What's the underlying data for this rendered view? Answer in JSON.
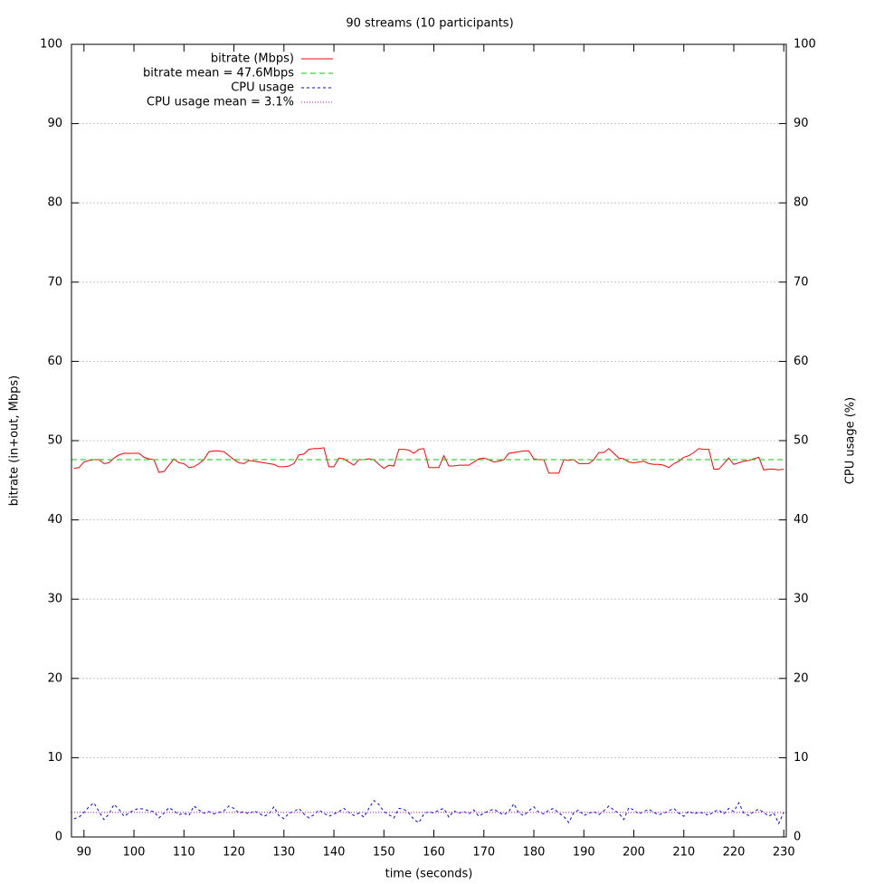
{
  "chart_data": {
    "type": "line",
    "title": "90 streams (10 participants)",
    "xlabel": "time (seconds)",
    "ylabel": "bitrate (in+out, Mbps)",
    "y2label": "CPU usage (%)",
    "xlim": [
      87.5,
      230.5
    ],
    "xticks": [
      90,
      100,
      110,
      120,
      130,
      140,
      150,
      160,
      170,
      180,
      190,
      200,
      210,
      220,
      230
    ],
    "ylim": [
      0,
      100
    ],
    "yticks": [
      0,
      10,
      20,
      30,
      40,
      50,
      60,
      70,
      80,
      90,
      100
    ],
    "y2lim": [
      0,
      100
    ],
    "y2ticks": [
      0,
      10,
      20,
      30,
      40,
      50,
      60,
      70,
      80,
      90,
      100
    ],
    "grid": true,
    "legend": "top-left",
    "x": [
      88,
      89,
      90,
      91,
      92,
      93,
      94,
      95,
      96,
      97,
      98,
      99,
      100,
      101,
      102,
      103,
      104,
      105,
      106,
      107,
      108,
      109,
      110,
      111,
      112,
      113,
      114,
      115,
      116,
      117,
      118,
      119,
      120,
      121,
      122,
      123,
      124,
      125,
      126,
      127,
      128,
      129,
      130,
      131,
      132,
      133,
      134,
      135,
      136,
      137,
      138,
      139,
      140,
      141,
      142,
      143,
      144,
      145,
      146,
      147,
      148,
      149,
      150,
      151,
      152,
      153,
      154,
      155,
      156,
      157,
      158,
      159,
      160,
      161,
      162,
      163,
      164,
      165,
      166,
      167,
      168,
      169,
      170,
      171,
      172,
      173,
      174,
      175,
      176,
      177,
      178,
      179,
      180,
      181,
      182,
      183,
      184,
      185,
      186,
      187,
      188,
      189,
      190,
      191,
      192,
      193,
      194,
      195,
      196,
      197,
      198,
      199,
      200,
      201,
      202,
      203,
      204,
      205,
      206,
      207,
      208,
      209,
      210,
      211,
      212,
      213,
      214,
      215,
      216,
      217,
      218,
      219,
      220,
      221,
      222,
      223,
      224,
      225,
      226,
      227,
      228,
      229,
      230
    ],
    "series": [
      {
        "name": "bitrate (Mbps)",
        "color": "#ff0000",
        "dash": "none",
        "axis": "y",
        "values": [
          46.5,
          46.6,
          47.3,
          47.5,
          47.6,
          47.6,
          47.1,
          47.2,
          47.8,
          48.2,
          48.4,
          48.4,
          48.4,
          48.4,
          47.9,
          47.7,
          47.6,
          46.0,
          46.1,
          46.9,
          47.7,
          47.2,
          47.1,
          46.6,
          46.7,
          47.1,
          47.6,
          48.6,
          48.7,
          48.7,
          48.6,
          48.1,
          47.6,
          47.2,
          47.1,
          47.5,
          47.4,
          47.3,
          47.2,
          47.1,
          47.0,
          46.7,
          46.7,
          46.8,
          47.1,
          48.2,
          48.3,
          48.9,
          49.0,
          49.0,
          49.1,
          46.7,
          46.7,
          47.8,
          47.7,
          47.3,
          46.9,
          47.6,
          47.6,
          47.7,
          47.6,
          47.0,
          46.5,
          46.9,
          46.8,
          48.9,
          48.9,
          48.8,
          48.4,
          48.9,
          49.0,
          46.6,
          46.6,
          46.6,
          48.1,
          46.8,
          46.8,
          46.9,
          46.9,
          46.9,
          47.3,
          47.7,
          47.8,
          47.6,
          47.3,
          47.4,
          47.6,
          48.4,
          48.5,
          48.6,
          48.7,
          48.7,
          47.7,
          47.6,
          47.6,
          45.9,
          45.9,
          45.9,
          47.6,
          47.5,
          47.6,
          47.1,
          47.1,
          47.1,
          47.6,
          48.5,
          48.5,
          49.0,
          48.4,
          47.8,
          47.7,
          47.3,
          47.2,
          47.3,
          47.4,
          47.1,
          47.0,
          47.0,
          46.9,
          46.6,
          47.1,
          47.4,
          47.9,
          48.1,
          48.5,
          49.0,
          48.9,
          48.9,
          46.4,
          46.4,
          47.1,
          47.8,
          47.0,
          47.2,
          47.4,
          47.5,
          47.7,
          47.9,
          46.3,
          46.4,
          46.4,
          46.3,
          46.4
        ]
      },
      {
        "name": "bitrate mean = 47.6Mbps",
        "color": "#00cc00",
        "dash": "6,4",
        "axis": "y",
        "mean": 47.6
      },
      {
        "name": "CPU usage",
        "color": "#0000ff",
        "dash": "3,3",
        "axis": "y2",
        "values": [
          2.3,
          2.5,
          3.1,
          3.8,
          4.3,
          3.2,
          2.2,
          2.9,
          4.1,
          3.5,
          2.6,
          3.0,
          3.4,
          3.6,
          3.5,
          3.3,
          3.2,
          2.4,
          3.0,
          3.7,
          3.3,
          2.8,
          3.0,
          2.7,
          3.9,
          3.4,
          3.0,
          3.2,
          2.9,
          3.1,
          3.3,
          3.9,
          3.6,
          3.0,
          3.2,
          2.9,
          3.3,
          3.0,
          2.6,
          2.9,
          3.8,
          2.7,
          2.3,
          3.0,
          3.2,
          3.6,
          2.9,
          2.4,
          2.8,
          3.4,
          3.0,
          2.6,
          2.9,
          3.2,
          3.6,
          3.1,
          2.7,
          3.0,
          2.5,
          3.6,
          4.6,
          4.1,
          3.2,
          2.8,
          2.4,
          3.6,
          3.5,
          3.0,
          2.2,
          1.8,
          2.9,
          3.2,
          3.0,
          3.4,
          3.6,
          2.5,
          3.3,
          3.0,
          3.2,
          2.9,
          3.4,
          2.6,
          3.0,
          3.3,
          3.5,
          3.1,
          2.8,
          3.2,
          4.2,
          3.0,
          2.7,
          3.3,
          3.8,
          3.1,
          2.9,
          3.4,
          3.6,
          3.0,
          2.6,
          1.8,
          3.1,
          3.4,
          2.7,
          3.0,
          3.2,
          2.8,
          3.3,
          3.9,
          3.4,
          3.0,
          2.2,
          3.7,
          3.4,
          2.9,
          3.2,
          3.5,
          3.1,
          2.8,
          3.0,
          3.3,
          3.6,
          3.0,
          2.6,
          3.3,
          2.9,
          3.1,
          3.0,
          2.7,
          3.2,
          3.4,
          2.9,
          3.6,
          3.2,
          4.3,
          3.0,
          2.7,
          3.2,
          3.5,
          3.1,
          2.6,
          3.0,
          1.7,
          3.1
        ]
      },
      {
        "name": "CPU usage mean = 3.1%",
        "color": "#cc00cc",
        "dash": "1,2",
        "axis": "y2",
        "mean": 3.1
      }
    ]
  }
}
